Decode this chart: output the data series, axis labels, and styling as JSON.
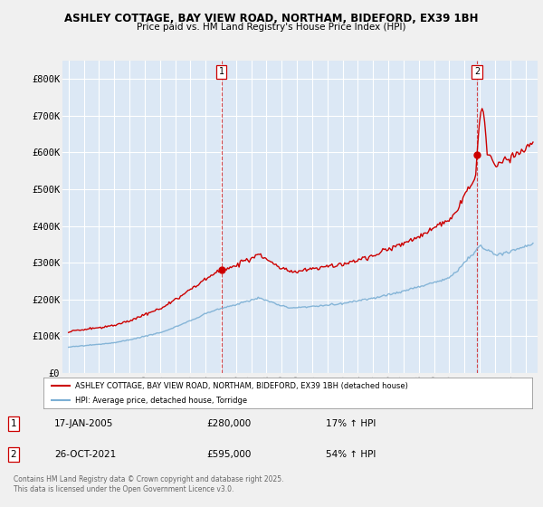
{
  "title1": "ASHLEY COTTAGE, BAY VIEW ROAD, NORTHAM, BIDEFORD, EX39 1BH",
  "title2": "Price paid vs. HM Land Registry's House Price Index (HPI)",
  "legend_line1": "ASHLEY COTTAGE, BAY VIEW ROAD, NORTHAM, BIDEFORD, EX39 1BH (detached house)",
  "legend_line2": "HPI: Average price, detached house, Torridge",
  "annotation1_date": "17-JAN-2005",
  "annotation1_price": "£280,000",
  "annotation1_hpi": "17% ↑ HPI",
  "annotation2_date": "26-OCT-2021",
  "annotation2_price": "£595,000",
  "annotation2_hpi": "54% ↑ HPI",
  "footer": "Contains HM Land Registry data © Crown copyright and database right 2025.\nThis data is licensed under the Open Government Licence v3.0.",
  "ylabel_ticks": [
    "£0",
    "£100K",
    "£200K",
    "£300K",
    "£400K",
    "£500K",
    "£600K",
    "£700K",
    "£800K"
  ],
  "ylim": [
    0,
    850000
  ],
  "sale1_year": 2005.04,
  "sale1_price": 280000,
  "sale2_year": 2021.82,
  "sale2_price": 595000,
  "bg_color": "#f0f0f0",
  "plot_bg_color": "#dce8f5",
  "red_color": "#cc0000",
  "blue_color": "#7bafd4",
  "grid_color": "#ffffff"
}
